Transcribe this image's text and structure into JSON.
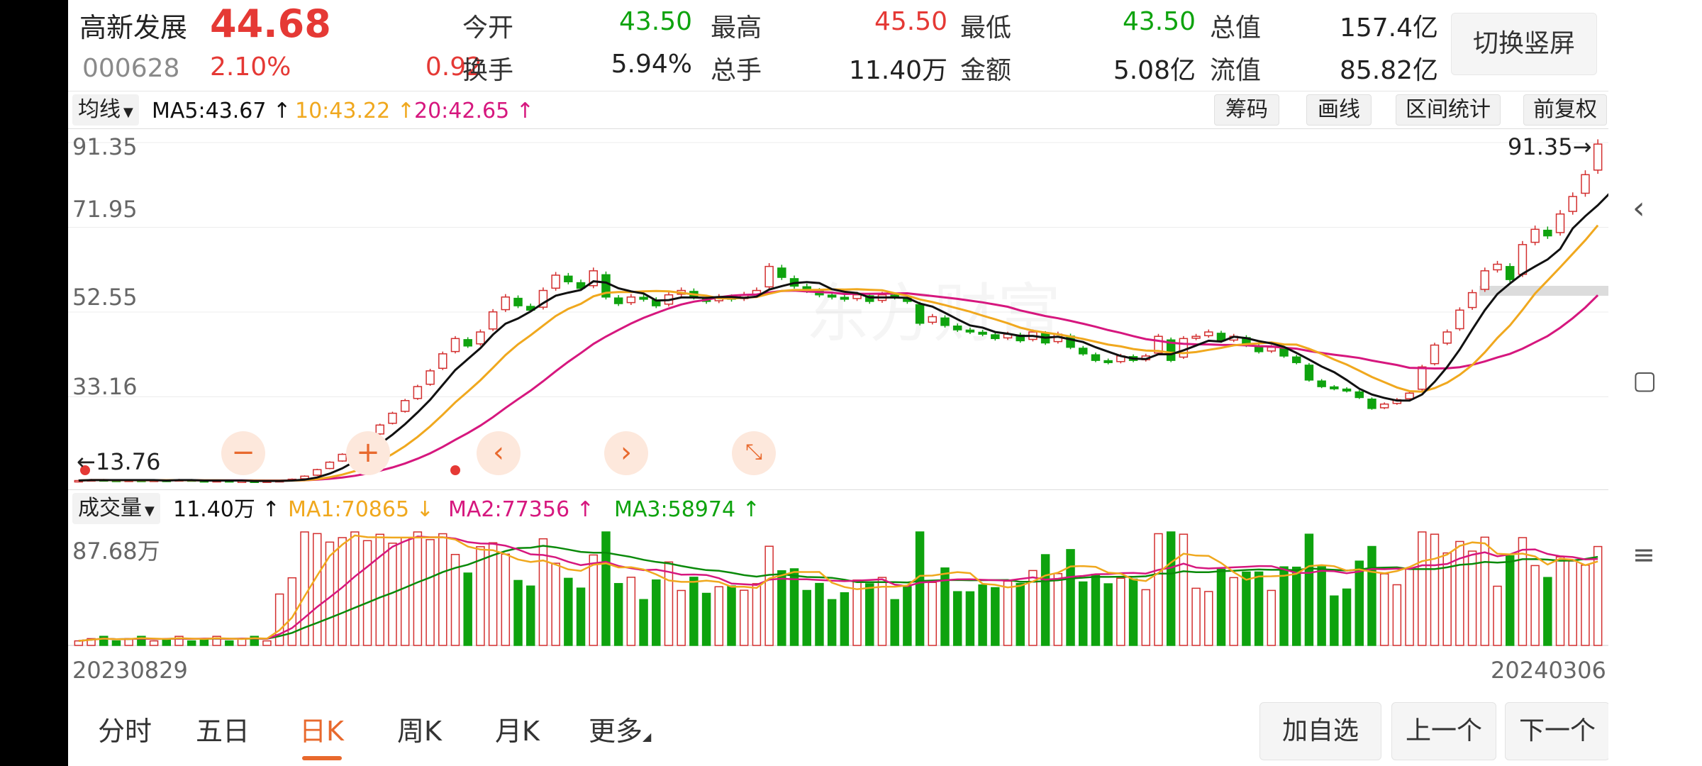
{
  "stock": {
    "name": "高新发展",
    "price": "44.68",
    "code": "000628",
    "change_pct": "2.10%",
    "change": "0.92"
  },
  "quote": {
    "open_label": "今开",
    "open": "43.50",
    "high_label": "最高",
    "high": "45.50",
    "low_label": "最低",
    "low": "43.50",
    "mcap_label": "总值",
    "mcap": "157.4亿",
    "turnover_label": "换手",
    "turnover": "5.94%",
    "volume_label": "总手",
    "volume": "11.40万",
    "amount_label": "金额",
    "amount": "5.08亿",
    "float_label": "流值",
    "float": "85.82亿"
  },
  "switch_label": "切换竖屏",
  "toolbar": {
    "ma_select": "均线",
    "ma5": "MA5:43.67",
    "ma10": "10:43.22",
    "ma20": "20:42.65",
    "arrow": "↑",
    "btn_chips": "筹码",
    "btn_draw": "画线",
    "btn_range": "区间统计",
    "btn_adjust": "前复权"
  },
  "price_axis": {
    "t1": "91.35",
    "t2": "71.95",
    "t3": "52.55",
    "t4": "33.16",
    "max_marker": "91.35→",
    "min_marker": "←13.76"
  },
  "volume_bar": {
    "select": "成交量",
    "vol": "11.40万",
    "ma1": "MA1:70865",
    "ma1_arrow": "↓",
    "ma2": "MA2:77356",
    "ma2_arrow": "↑",
    "ma3": "MA3:58974",
    "ma3_arrow": "↑",
    "axis_max": "87.68万"
  },
  "dates": {
    "start": "20230829",
    "end": "20240306"
  },
  "tabs": [
    "分时",
    "五日",
    "日K",
    "周K",
    "月K",
    "更多"
  ],
  "active_tab": 2,
  "bottom_buttons": {
    "add": "加自选",
    "prev": "上一个",
    "next": "下一个"
  },
  "colors": {
    "up": "#d32f2f",
    "down": "#0ea30e",
    "ma5": "#111111",
    "ma10": "#f0a81e",
    "ma20": "#d6177e",
    "accent": "#e8692d"
  },
  "chart_data": {
    "type": "candlestick",
    "y_ticks": [
      91.35,
      71.95,
      52.55,
      33.16
    ],
    "max_price": 91.35,
    "min_price": 13.76,
    "date_start": "20230829",
    "date_end": "20240306",
    "closes": [
      14.0,
      14.2,
      14.1,
      14.0,
      14.1,
      14.0,
      14.1,
      14.0,
      14.2,
      14.0,
      13.9,
      14.0,
      13.9,
      13.9,
      13.8,
      13.9,
      14.0,
      14.3,
      15.0,
      16.5,
      18.2,
      20.0,
      22.1,
      24.3,
      26.7,
      29.4,
      32.3,
      35.5,
      39.1,
      43.0,
      46.5,
      44.8,
      48.0,
      52.6,
      56.0,
      54.0,
      53.0,
      57.5,
      61.0,
      59.5,
      58.0,
      62.0,
      56.0,
      54.5,
      56.0,
      55.5,
      54.0,
      56.5,
      57.5,
      56.0,
      55.0,
      56.0,
      55.5,
      56.5,
      57.5,
      63.0,
      60.5,
      58.5,
      57.5,
      56.5,
      56.0,
      55.5,
      56.5,
      55.0,
      56.5,
      56.0,
      55.0,
      50.0,
      51.5,
      49.5,
      48.5,
      48.0,
      47.5,
      46.5,
      47.5,
      46.0,
      48.0,
      45.5,
      47.5,
      44.5,
      43.0,
      41.5,
      41.0,
      42.5,
      41.5,
      42.5,
      47.0,
      41.5,
      46.5,
      47.0,
      48.0,
      46.0,
      47.0,
      45.0,
      43.5,
      44.5,
      42.5,
      41.0,
      37.0,
      35.5,
      35.0,
      34.5,
      33.0,
      30.5,
      31.5,
      32.5,
      34.0,
      40.0,
      45.0,
      48.0,
      53.0,
      57.0,
      62.0,
      63.5,
      60.0,
      68.0,
      71.5,
      70.0,
      75.0,
      79.0,
      84.0,
      91.0
    ],
    "ma5": [
      14.0,
      14.1,
      14.1,
      14.1,
      14.1,
      14.1,
      14.1,
      14.0,
      14.1,
      14.1,
      14.0,
      14.0,
      14.0,
      14.0,
      13.9,
      13.9,
      13.9,
      14.0,
      14.2,
      14.7,
      15.6,
      16.8,
      18.4,
      20.2,
      22.4,
      24.5,
      26.9,
      29.6,
      32.5,
      35.9,
      39.3,
      41.8,
      44.3,
      47.4,
      49.9,
      51.1,
      52.7,
      54.6,
      56.3,
      57.0,
      57.6,
      59.6,
      59.3,
      58.0,
      57.3,
      56.8,
      55.2,
      55.3,
      55.9,
      55.9,
      55.8,
      56.0,
      56.0,
      55.8,
      56.1,
      57.7,
      58.5,
      59.2,
      59.4,
      59.2,
      57.8,
      57.2,
      56.9,
      55.9,
      55.9,
      55.9,
      55.8,
      54.5,
      53.8,
      52.4,
      50.9,
      49.5,
      49.0,
      48.0,
      47.6,
      47.1,
      47.1,
      46.7,
      46.9,
      46.3,
      45.7,
      44.5,
      43.5,
      42.5,
      41.9,
      41.8,
      42.9,
      42.9,
      43.8,
      44.9,
      46.0,
      45.8,
      46.9,
      46.6,
      45.9,
      45.4,
      44.6,
      43.2,
      41.7,
      40.1,
      38.8,
      37.0,
      35.0,
      33.7,
      32.9,
      32.3,
      32.3,
      33.7,
      36.6,
      40.0,
      44.0,
      48.6,
      53.0,
      56.7,
      59.1,
      61.3,
      63.0,
      64.6,
      67.0,
      71.7,
      74.5,
      77.0,
      79.9
    ]
  }
}
